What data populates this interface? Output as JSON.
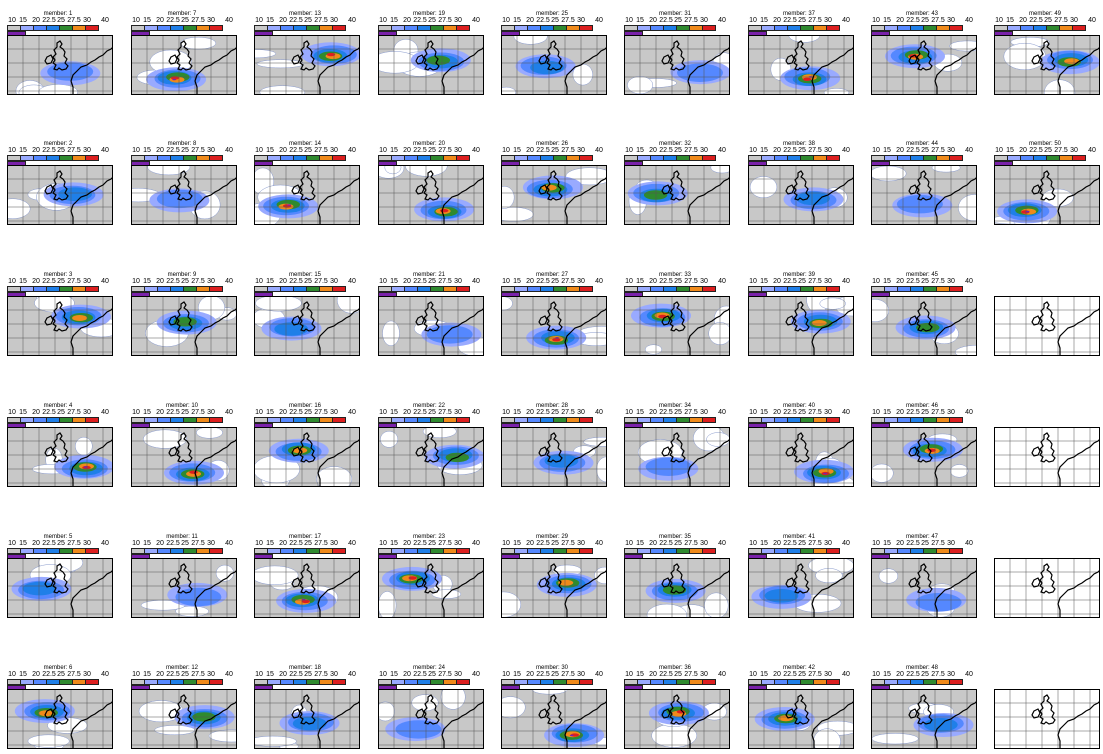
{
  "colorbar": {
    "ticks": [
      "10",
      "15",
      "20",
      "22.5",
      "25",
      "27.5",
      "30",
      "40"
    ],
    "colors": [
      "#c8c8c8",
      "#99aaff",
      "#5588ff",
      "#1f7fe8",
      "#2f8a2f",
      "#f08a1a",
      "#dd1f1f",
      "#7a22aa"
    ]
  },
  "panels": [
    {
      "title": "member: 1",
      "rows": 0,
      "col": 0,
      "blank": false
    },
    {
      "title": "member: 2",
      "rows": 1,
      "col": 0,
      "blank": false
    },
    {
      "title": "member: 3",
      "rows": 2,
      "col": 0,
      "blank": false
    },
    {
      "title": "member: 4",
      "rows": 3,
      "col": 0,
      "blank": false
    },
    {
      "title": "member: 5",
      "rows": 4,
      "col": 0,
      "blank": false
    },
    {
      "title": "member: 6",
      "rows": 5,
      "col": 0,
      "blank": false
    },
    {
      "title": "member: 7",
      "rows": 0,
      "col": 1,
      "blank": false
    },
    {
      "title": "member: 8",
      "rows": 1,
      "col": 1,
      "blank": false
    },
    {
      "title": "member: 9",
      "rows": 2,
      "col": 1,
      "blank": false
    },
    {
      "title": "member: 10",
      "rows": 3,
      "col": 1,
      "blank": false
    },
    {
      "title": "member: 11",
      "rows": 4,
      "col": 1,
      "blank": false
    },
    {
      "title": "member: 12",
      "rows": 5,
      "col": 1,
      "blank": false
    },
    {
      "title": "member: 13",
      "rows": 0,
      "col": 2,
      "blank": false
    },
    {
      "title": "member: 14",
      "rows": 1,
      "col": 2,
      "blank": false
    },
    {
      "title": "member: 15",
      "rows": 2,
      "col": 2,
      "blank": false
    },
    {
      "title": "member: 16",
      "rows": 3,
      "col": 2,
      "blank": false
    },
    {
      "title": "member: 17",
      "rows": 4,
      "col": 2,
      "blank": false
    },
    {
      "title": "member: 18",
      "rows": 5,
      "col": 2,
      "blank": false
    },
    {
      "title": "member: 19",
      "rows": 0,
      "col": 3,
      "blank": false
    },
    {
      "title": "member: 20",
      "rows": 1,
      "col": 3,
      "blank": false
    },
    {
      "title": "member: 21",
      "rows": 2,
      "col": 3,
      "blank": false
    },
    {
      "title": "member: 22",
      "rows": 3,
      "col": 3,
      "blank": false
    },
    {
      "title": "member: 23",
      "rows": 4,
      "col": 3,
      "blank": false
    },
    {
      "title": "member: 24",
      "rows": 5,
      "col": 3,
      "blank": false
    },
    {
      "title": "member: 25",
      "rows": 0,
      "col": 4,
      "blank": false
    },
    {
      "title": "member: 26",
      "rows": 1,
      "col": 4,
      "blank": false
    },
    {
      "title": "member: 27",
      "rows": 2,
      "col": 4,
      "blank": false
    },
    {
      "title": "member: 28",
      "rows": 3,
      "col": 4,
      "blank": false
    },
    {
      "title": "member: 29",
      "rows": 4,
      "col": 4,
      "blank": false
    },
    {
      "title": "member: 30",
      "rows": 5,
      "col": 4,
      "blank": false
    },
    {
      "title": "member: 31",
      "rows": 0,
      "col": 5,
      "blank": false
    },
    {
      "title": "member: 32",
      "rows": 1,
      "col": 5,
      "blank": false
    },
    {
      "title": "member: 33",
      "rows": 2,
      "col": 5,
      "blank": false
    },
    {
      "title": "member: 34",
      "rows": 3,
      "col": 5,
      "blank": false
    },
    {
      "title": "member: 35",
      "rows": 4,
      "col": 5,
      "blank": false
    },
    {
      "title": "member: 36",
      "rows": 5,
      "col": 5,
      "blank": false
    },
    {
      "title": "member: 37",
      "rows": 0,
      "col": 6,
      "blank": false
    },
    {
      "title": "member: 38",
      "rows": 1,
      "col": 6,
      "blank": false
    },
    {
      "title": "member: 39",
      "rows": 2,
      "col": 6,
      "blank": false
    },
    {
      "title": "member: 40",
      "rows": 3,
      "col": 6,
      "blank": false
    },
    {
      "title": "member: 41",
      "rows": 4,
      "col": 6,
      "blank": false
    },
    {
      "title": "member: 42",
      "rows": 5,
      "col": 6,
      "blank": false
    },
    {
      "title": "member: 43",
      "rows": 0,
      "col": 7,
      "blank": false
    },
    {
      "title": "member: 44",
      "rows": 1,
      "col": 7,
      "blank": false
    },
    {
      "title": "member: 45",
      "rows": 2,
      "col": 7,
      "blank": false
    },
    {
      "title": "member: 46",
      "rows": 3,
      "col": 7,
      "blank": false
    },
    {
      "title": "member: 47",
      "rows": 4,
      "col": 7,
      "blank": false
    },
    {
      "title": "member: 48",
      "rows": 5,
      "col": 7,
      "blank": false
    },
    {
      "title": "member: 49",
      "rows": 0,
      "col": 8,
      "blank": false
    },
    {
      "title": "member: 50",
      "rows": 1,
      "col": 8,
      "blank": false
    },
    {
      "title": "",
      "rows": 2,
      "col": 8,
      "blank": true
    },
    {
      "title": "",
      "rows": 3,
      "col": 8,
      "blank": true
    },
    {
      "title": "",
      "rows": 4,
      "col": 8,
      "blank": true
    },
    {
      "title": "",
      "rows": 5,
      "col": 8,
      "blank": true
    }
  ]
}
